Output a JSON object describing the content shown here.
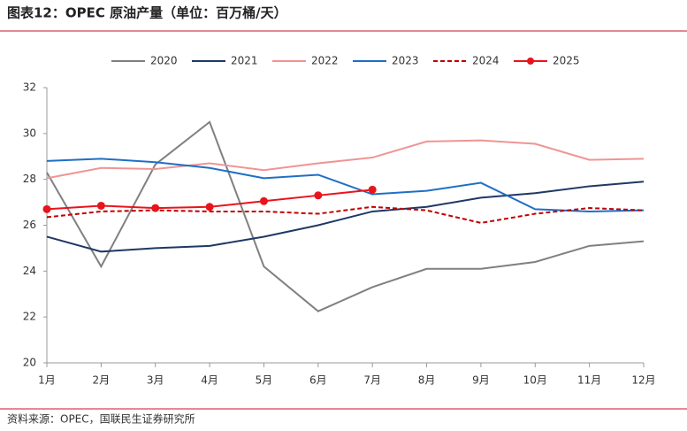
{
  "chart_data": {
    "type": "line",
    "title": "图表12：OPEC 原油产量（单位：百万桶/天）",
    "source": "资料来源：OPEC，国联民生证券研究所",
    "categories": [
      "1月",
      "2月",
      "3月",
      "4月",
      "5月",
      "6月",
      "7月",
      "8月",
      "9月",
      "10月",
      "11月",
      "12月"
    ],
    "series": [
      {
        "name": "2020",
        "color": "#808080",
        "values": [
          28.3,
          24.2,
          28.65,
          30.5,
          24.2,
          22.25,
          23.3,
          24.1,
          24.1,
          24.4,
          25.1,
          25.3
        ]
      },
      {
        "name": "2021",
        "color": "#1f3864",
        "values": [
          25.5,
          24.85,
          25.0,
          25.1,
          25.5,
          26.0,
          26.6,
          26.8,
          27.2,
          27.4,
          27.7,
          27.9
        ]
      },
      {
        "name": "2022",
        "color": "#f09494",
        "values": [
          28.05,
          28.5,
          28.45,
          28.7,
          28.4,
          28.7,
          28.95,
          29.65,
          29.7,
          29.55,
          28.85,
          28.9
        ]
      },
      {
        "name": "2023",
        "color": "#1f6fc5",
        "values": [
          28.8,
          28.9,
          28.75,
          28.5,
          28.05,
          28.2,
          27.35,
          27.5,
          27.85,
          26.7,
          26.6,
          26.65
        ]
      },
      {
        "name": "2024",
        "color": "#c00000",
        "dashed": true,
        "values": [
          26.35,
          26.6,
          26.65,
          26.6,
          26.6,
          26.5,
          26.8,
          26.65,
          26.1,
          26.5,
          26.75,
          26.65
        ]
      },
      {
        "name": "2025",
        "color": "#e8141c",
        "markers": true,
        "values": [
          26.7,
          26.85,
          26.75,
          26.8,
          27.05,
          27.3,
          27.55,
          null,
          null,
          null,
          null,
          null
        ]
      }
    ],
    "ylim": [
      20,
      32
    ],
    "yticks": [
      20,
      22,
      24,
      26,
      28,
      30,
      32
    ],
    "grid": false
  }
}
